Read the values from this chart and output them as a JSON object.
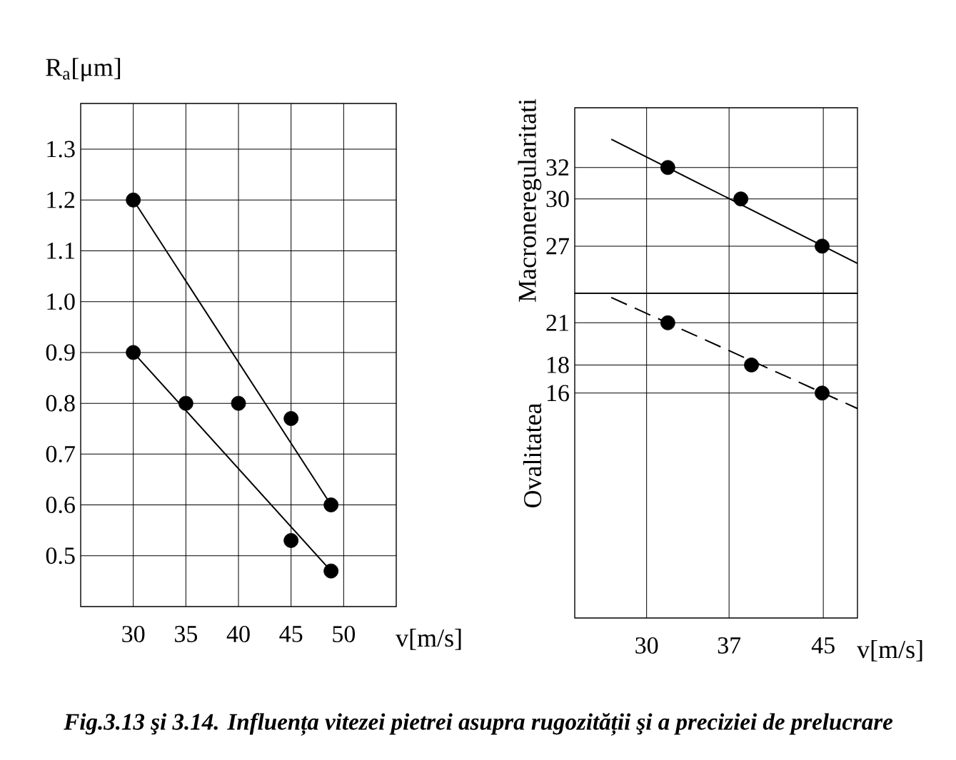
{
  "chart_data": [
    {
      "type": "scatter",
      "ylabel": "R$_{a}$[μm]",
      "xlabel": "v[m/s]",
      "xlim": [
        25,
        55
      ],
      "ylim": [
        0.4,
        1.39
      ],
      "xticks": [
        30,
        35,
        40,
        45,
        50
      ],
      "yticks": [
        0.5,
        0.6,
        0.7,
        0.8,
        0.9,
        {
          "value": 1.0,
          "label": "1.0"
        },
        1.1,
        1.2,
        1.3
      ],
      "grid": true,
      "series": [
        {
          "marker": "circle",
          "color": "#000000",
          "x": [
            30,
            40,
            45,
            48.8
          ],
          "values": [
            1.2,
            0.8,
            0.77,
            0.6
          ]
        },
        {
          "marker": "circle",
          "color": "#000000",
          "x": [
            30,
            35,
            45,
            48.8
          ],
          "values": [
            0.9,
            0.8,
            0.53,
            0.47
          ]
        },
        {
          "type": "line",
          "marker": "none",
          "color": "#000000",
          "x": [
            30,
            48.8
          ],
          "values": [
            1.2,
            0.6
          ]
        },
        {
          "type": "line",
          "marker": "none",
          "color": "#000000",
          "x": [
            30,
            48.8
          ],
          "values": [
            0.9,
            0.47
          ]
        }
      ],
      "annotations": [
        "Fig.3.13 şi 3.14. Influența vitezei pietrei asupra rugozității şi a preciziei de prelucrare"
      ]
    },
    {
      "type": "scatter",
      "ylabel": "Macroneregularitati",
      "xlim": [
        23.9,
        47.9
      ],
      "ylim": [
        24,
        35.8
      ],
      "xticks": [
        30,
        37,
        45
      ],
      "yticks": [
        27,
        30,
        32
      ],
      "grid": true,
      "tick_labels": "y",
      "series": [
        {
          "marker": "circle",
          "color": "#000000",
          "x": [
            31.8,
            38,
            44.9
          ],
          "values": [
            32,
            30,
            27
          ]
        },
        {
          "type": "line",
          "marker": "none",
          "color": "#000000",
          "line_style": "solid",
          "x": [
            27,
            47.9
          ],
          "values": [
            33.8,
            25.9
          ]
        }
      ]
    },
    {
      "type": "scatter",
      "ylabel": "Ovalitatea",
      "xlabel": "v[m/s]",
      "xlim": [
        23.9,
        47.9
      ],
      "ylim": [
        0,
        23.1
      ],
      "xticks": [
        30,
        37,
        45
      ],
      "yticks": [
        16,
        18,
        21
      ],
      "grid": true,
      "series": [
        {
          "marker": "circle",
          "color": "#000000",
          "x": [
            31.8,
            38.9,
            44.9
          ],
          "values": [
            21,
            18,
            16
          ]
        },
        {
          "type": "line",
          "marker": "none",
          "color": "#000000",
          "line_style": "dashed",
          "x": [
            27,
            47.9
          ],
          "values": [
            22.8,
            14.9
          ]
        }
      ]
    }
  ]
}
